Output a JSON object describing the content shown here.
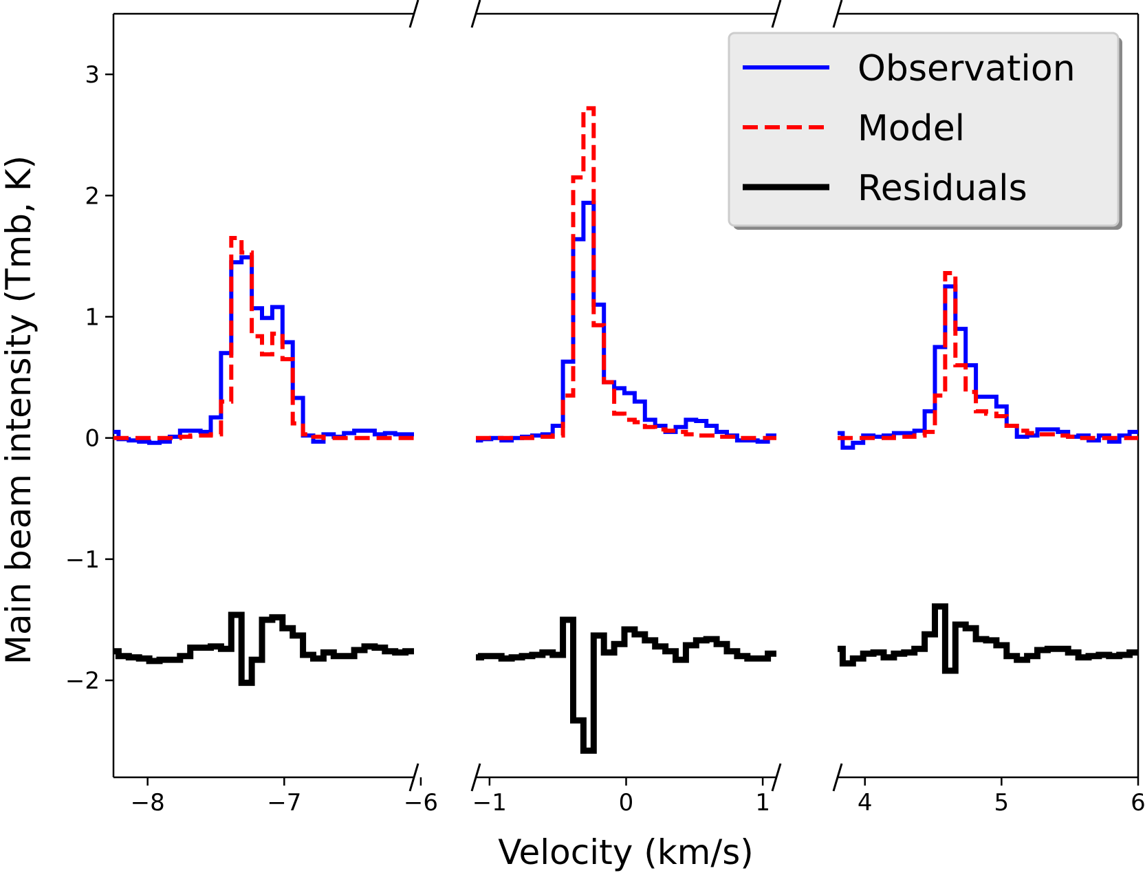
{
  "chart_data": {
    "type": "line",
    "style": "step",
    "xlabel": "Velocity (km/s)",
    "ylabel": "Main beam intensity (Tmb, K)",
    "ylim": [
      -2.8,
      3.5
    ],
    "yticks": [
      -2,
      -1,
      0,
      1,
      2,
      3
    ],
    "ytick_labels": [
      "−2",
      "−1",
      "0",
      "1",
      "2",
      "3"
    ],
    "broken_axis": true,
    "legend": {
      "position": "top-right",
      "entries": [
        "Observation",
        "Model",
        "Residuals"
      ]
    },
    "colors": {
      "Observation": "#0000ff",
      "Model": "#ff0000",
      "Residuals": "#000000"
    },
    "panels": [
      {
        "name": "panel-1",
        "xlim": [
          -8.25,
          -6.05
        ],
        "xticks": [
          -8,
          -7,
          -6
        ],
        "xtick_labels": [
          "−8",
          "−7",
          "−6"
        ],
        "x": [
          -8.25,
          -8.175,
          -8.1,
          -8.025,
          -7.95,
          -7.875,
          -7.8,
          -7.725,
          -7.65,
          -7.575,
          -7.5,
          -7.425,
          -7.35,
          -7.275,
          -7.2,
          -7.125,
          -7.05,
          -6.975,
          -6.9,
          -6.825,
          -6.75,
          -6.675,
          -6.6,
          -6.525,
          -6.45,
          -6.375,
          -6.3,
          -6.225,
          -6.15,
          -6.075
        ],
        "series": [
          {
            "name": "Observation",
            "values": [
              0.05,
              -0.01,
              -0.02,
              -0.03,
              -0.04,
              -0.03,
              0.01,
              0.06,
              0.06,
              0.05,
              0.17,
              0.7,
              1.45,
              1.49,
              1.07,
              0.99,
              1.08,
              0.79,
              0.33,
              0.02,
              -0.03,
              0.03,
              0.01,
              0.04,
              0.06,
              0.06,
              0.03,
              0.04,
              0.03,
              0.03
            ]
          },
          {
            "name": "Model",
            "values": [
              0,
              0,
              0,
              0,
              0,
              0,
              0,
              0.01,
              0.02,
              0.02,
              0.03,
              0.3,
              1.65,
              1.53,
              0.84,
              0.69,
              0.86,
              0.65,
              0.12,
              0.03,
              0.01,
              0,
              0,
              0,
              0,
              0,
              0,
              0,
              0,
              0
            ]
          },
          {
            "name": "Residuals",
            "values": [
              -1.76,
              -1.8,
              -1.81,
              -1.82,
              -1.84,
              -1.83,
              -1.83,
              -1.8,
              -1.73,
              -1.73,
              -1.72,
              -1.74,
              -1.46,
              -2.02,
              -1.83,
              -1.5,
              -1.48,
              -1.57,
              -1.63,
              -1.79,
              -1.82,
              -1.77,
              -1.8,
              -1.8,
              -1.75,
              -1.72,
              -1.73,
              -1.76,
              -1.77,
              -1.76
            ]
          }
        ]
      },
      {
        "name": "panel-2",
        "xlim": [
          -1.1,
          1.1
        ],
        "xticks": [
          -1,
          0,
          1
        ],
        "xtick_labels": [
          "−1",
          "0",
          "1"
        ],
        "x": [
          -1.1,
          -1.025,
          -0.95,
          -0.875,
          -0.8,
          -0.725,
          -0.65,
          -0.575,
          -0.5,
          -0.425,
          -0.35,
          -0.275,
          -0.2,
          -0.125,
          -0.05,
          0.025,
          0.1,
          0.175,
          0.25,
          0.325,
          0.4,
          0.475,
          0.55,
          0.625,
          0.7,
          0.775,
          0.85,
          0.925,
          1.0,
          1.075
        ],
        "series": [
          {
            "name": "Observation",
            "values": [
              -0.02,
              -0.01,
              0,
              -0.02,
              0,
              0.01,
              0.02,
              0.03,
              0.1,
              0.63,
              1.64,
              1.94,
              1.1,
              0.46,
              0.41,
              0.37,
              0.3,
              0.15,
              0.1,
              0.05,
              0.09,
              0.15,
              0.14,
              0.1,
              0.05,
              0.02,
              -0.02,
              -0.02,
              -0.03,
              0.02
            ]
          },
          {
            "name": "Model",
            "values": [
              0,
              0,
              0,
              0,
              0,
              0,
              0.01,
              0.01,
              0.02,
              0.35,
              2.15,
              2.72,
              0.93,
              0.46,
              0.2,
              0.15,
              0.13,
              0.09,
              0.07,
              0.06,
              0.05,
              0.03,
              0.02,
              0.02,
              0.01,
              0.01,
              0,
              0,
              0,
              0
            ]
          },
          {
            "name": "Residuals",
            "values": [
              -1.81,
              -1.8,
              -1.8,
              -1.82,
              -1.81,
              -1.8,
              -1.79,
              -1.77,
              -1.79,
              -1.5,
              -2.33,
              -2.58,
              -1.63,
              -1.77,
              -1.7,
              -1.58,
              -1.62,
              -1.67,
              -1.72,
              -1.76,
              -1.83,
              -1.71,
              -1.67,
              -1.66,
              -1.7,
              -1.76,
              -1.8,
              -1.82,
              -1.82,
              -1.78
            ]
          }
        ]
      },
      {
        "name": "panel-3",
        "xlim": [
          3.8,
          6.0
        ],
        "xticks": [
          4,
          5,
          6
        ],
        "xtick_labels": [
          "4",
          "5",
          "6"
        ],
        "x": [
          3.8,
          3.875,
          3.95,
          4.025,
          4.1,
          4.175,
          4.25,
          4.325,
          4.4,
          4.475,
          4.55,
          4.625,
          4.7,
          4.775,
          4.85,
          4.925,
          5.0,
          5.075,
          5.15,
          5.225,
          5.3,
          5.375,
          5.45,
          5.525,
          5.6,
          5.675,
          5.75,
          5.825,
          5.9,
          5.975
        ],
        "series": [
          {
            "name": "Observation",
            "values": [
              0.04,
              -0.08,
              -0.04,
              0.02,
              0.01,
              0.02,
              0.04,
              0.04,
              0.06,
              0.22,
              0.75,
              1.25,
              0.9,
              0.6,
              0.34,
              0.34,
              0.26,
              0.1,
              0.01,
              0.02,
              0.07,
              0.07,
              0.05,
              0.01,
              0.02,
              -0.02,
              0.02,
              -0.03,
              0.02,
              0.05
            ]
          },
          {
            "name": "Model",
            "values": [
              0,
              0,
              0,
              0,
              0,
              0,
              0.01,
              0.01,
              0.02,
              0.05,
              0.35,
              1.36,
              0.6,
              0.38,
              0.22,
              0.2,
              0.18,
              0.1,
              0.06,
              0.04,
              0.03,
              0.03,
              0.02,
              0.01,
              0,
              0,
              0,
              0,
              0,
              0
            ]
          },
          {
            "name": "Residuals",
            "values": [
              -1.74,
              -1.86,
              -1.82,
              -1.78,
              -1.77,
              -1.81,
              -1.78,
              -1.77,
              -1.74,
              -1.62,
              -1.39,
              -1.92,
              -1.54,
              -1.57,
              -1.66,
              -1.67,
              -1.71,
              -1.8,
              -1.83,
              -1.8,
              -1.75,
              -1.74,
              -1.74,
              -1.77,
              -1.81,
              -1.8,
              -1.79,
              -1.8,
              -1.79,
              -1.77
            ]
          }
        ]
      }
    ]
  }
}
